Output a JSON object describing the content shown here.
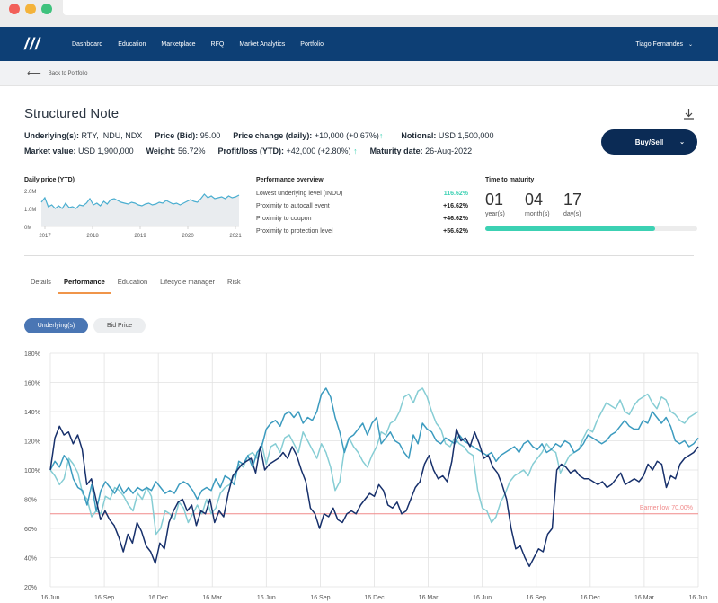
{
  "nav": {
    "logo": "///",
    "items": [
      "Dashboard",
      "Education",
      "Marketplace",
      "RFQ",
      "Market Analytics",
      "Portfolio"
    ],
    "user": "Tiago Fernandes",
    "bg": "#0d3f75"
  },
  "back": {
    "label": "Back to Portfolio"
  },
  "header": {
    "title": "Structured Note",
    "row1": [
      {
        "k": "Underlying(s):",
        "v": "RTY, INDU, NDX"
      },
      {
        "k": "Price (Bid):",
        "v": "95.00"
      },
      {
        "k": "Price change (daily):",
        "v": "+10,000 (+0.67%)",
        "arrow": "↑"
      },
      {
        "k": "Notional:",
        "v": "USD 1,500,000"
      }
    ],
    "row2": [
      {
        "k": "Market value:",
        "v": "USD 1,900,000"
      },
      {
        "k": "Weight:",
        "v": "56.72%"
      },
      {
        "k": "Profit/loss (YTD):",
        "v": "+42,000 (+2.80%)",
        "arrow": "↑"
      },
      {
        "k": "Maturity date:",
        "v": "26-Aug-2022"
      }
    ],
    "buy_sell": "Buy/Sell"
  },
  "daily_price": {
    "title": "Daily price (YTD)",
    "y_ticks": [
      "2.0M",
      "1.0M",
      "0M"
    ],
    "x_ticks": [
      "2017",
      "2018",
      "2019",
      "2020",
      "2021"
    ],
    "values": [
      1.35,
      1.6,
      1.1,
      1.2,
      1.0,
      1.15,
      1.0,
      1.3,
      1.05,
      1.1,
      1.0,
      1.2,
      1.15,
      1.3,
      1.55,
      1.2,
      1.3,
      1.15,
      1.4,
      1.25,
      1.5,
      1.55,
      1.45,
      1.35,
      1.3,
      1.25,
      1.35,
      1.3,
      1.2,
      1.15,
      1.25,
      1.3,
      1.2,
      1.25,
      1.35,
      1.3,
      1.45,
      1.35,
      1.25,
      1.3,
      1.2,
      1.3,
      1.4,
      1.5,
      1.4,
      1.35,
      1.55,
      1.8,
      1.6,
      1.7,
      1.55,
      1.6,
      1.65,
      1.55,
      1.7,
      1.6,
      1.65,
      1.75
    ]
  },
  "performance_overview": {
    "title": "Performance overview",
    "rows": [
      {
        "label": "Lowest underlying level (INDU)",
        "value": "116.62%",
        "highlight": true
      },
      {
        "label": "Proximity to autocall event",
        "value": "+16.62%",
        "highlight": false
      },
      {
        "label": "Proximity to coupon",
        "value": "+46.62%",
        "highlight": false
      },
      {
        "label": "Proximity to protection level",
        "value": "+56.62%",
        "highlight": false
      }
    ]
  },
  "time_to_maturity": {
    "title": "Time to maturity",
    "parts": [
      {
        "num": "01",
        "label": "year(s)"
      },
      {
        "num": "04",
        "label": "month(s)"
      },
      {
        "num": "17",
        "label": "day(s)"
      }
    ],
    "progress": 0.8
  },
  "tabs": [
    "Details",
    "Performance",
    "Education",
    "Lifecycle manager",
    "Risk"
  ],
  "active_tab": "Performance",
  "toggles": {
    "on": "Underlying(s)",
    "off": "Bid Price"
  },
  "chart_data": {
    "type": "line",
    "y_ticks": [
      "180%",
      "160%",
      "140%",
      "120%",
      "100%",
      "80%",
      "60%",
      "40%",
      "20%"
    ],
    "ylim": [
      20,
      180
    ],
    "x_ticks": [
      "16 Jun",
      "16 Sep",
      "16 Dec",
      "16 Mar",
      "16 Jun",
      "16 Sep",
      "16 Dec",
      "16 Mar",
      "16 Jun",
      "16 Sep",
      "16 Dec",
      "16 Mar",
      "16 Jun"
    ],
    "barrier": {
      "label": "Barrier low 70.00%",
      "value": 70,
      "color": "#f08a8a"
    },
    "series": [
      {
        "color": "#17306b",
        "values": [
          100,
          122,
          130,
          124,
          126,
          118,
          124,
          114,
          90,
          94,
          80,
          66,
          72,
          66,
          62,
          54,
          44,
          56,
          50,
          64,
          58,
          48,
          44,
          36,
          50,
          46,
          64,
          72,
          78,
          80,
          72,
          76,
          62,
          72,
          70,
          80,
          64,
          72,
          68,
          84,
          96,
          100,
          104,
          106,
          108,
          98,
          116,
          100,
          104,
          106,
          108,
          112,
          108,
          116,
          110,
          100,
          92,
          74,
          70,
          60,
          70,
          68,
          74,
          66,
          64,
          70,
          72,
          70,
          76,
          80,
          84,
          82,
          90,
          86,
          76,
          74,
          78,
          70,
          72,
          80,
          88,
          92,
          104,
          110,
          100,
          94,
          96,
          92,
          106,
          128,
          120,
          122,
          116,
          126,
          118,
          108,
          110,
          102,
          98,
          90,
          80,
          60,
          46,
          48,
          40,
          34,
          40,
          46,
          44,
          56,
          60,
          100,
          104,
          102,
          98,
          100,
          96,
          94,
          94,
          92,
          90,
          92,
          88,
          90,
          94,
          98,
          90,
          92,
          94,
          92,
          96,
          104,
          100,
          106,
          104,
          88,
          96,
          94,
          104,
          108,
          110,
          112,
          116
        ]
      },
      {
        "color": "#3c9bbf",
        "values": [
          100,
          106,
          102,
          110,
          106,
          94,
          88,
          86,
          76,
          90,
          72,
          86,
          92,
          88,
          84,
          90,
          84,
          88,
          84,
          88,
          86,
          88,
          86,
          92,
          88,
          84,
          86,
          84,
          90,
          92,
          90,
          86,
          80,
          86,
          88,
          86,
          94,
          88,
          96,
          94,
          90,
          106,
          104,
          110,
          102,
          112,
          116,
          128,
          132,
          134,
          130,
          138,
          140,
          136,
          140,
          132,
          136,
          134,
          140,
          152,
          156,
          150,
          136,
          126,
          112,
          122,
          124,
          128,
          132,
          124,
          132,
          136,
          118,
          122,
          126,
          120,
          118,
          112,
          108,
          124,
          118,
          132,
          128,
          126,
          120,
          118,
          122,
          120,
          118,
          124,
          120,
          118,
          116,
          114,
          112,
          110,
          112,
          106,
          110,
          112,
          114,
          116,
          112,
          118,
          120,
          116,
          114,
          118,
          112,
          114,
          118,
          116,
          120,
          118,
          112,
          114,
          118,
          124,
          122,
          120,
          118,
          120,
          124,
          126,
          130,
          134,
          130,
          128,
          128,
          134,
          132,
          140,
          136,
          132,
          136,
          130,
          120,
          118,
          120,
          116,
          118,
          122
        ]
      },
      {
        "color": "#86cdd4",
        "values": [
          100,
          96,
          90,
          94,
          108,
          104,
          98,
          84,
          80,
          68,
          72,
          70,
          82,
          80,
          88,
          86,
          82,
          76,
          72,
          84,
          80,
          88,
          82,
          56,
          60,
          72,
          70,
          66,
          78,
          74,
          64,
          70,
          76,
          70,
          80,
          70,
          74,
          84,
          88,
          90,
          96,
          104,
          102,
          110,
          112,
          108,
          118,
          104,
          116,
          118,
          112,
          122,
          124,
          118,
          112,
          126,
          120,
          114,
          108,
          118,
          112,
          102,
          86,
          92,
          114,
          122,
          116,
          112,
          106,
          102,
          110,
          116,
          126,
          124,
          132,
          134,
          140,
          150,
          152,
          146,
          154,
          156,
          150,
          140,
          132,
          128,
          118,
          116,
          122,
          118,
          116,
          112,
          110,
          86,
          74,
          72,
          64,
          68,
          78,
          84,
          92,
          96,
          98,
          100,
          96,
          104,
          108,
          112,
          118,
          114,
          112,
          98,
          104,
          110,
          112,
          114,
          122,
          128,
          126,
          134,
          140,
          146,
          144,
          142,
          148,
          140,
          138,
          144,
          148,
          150,
          152,
          146,
          142,
          150,
          148,
          140,
          138,
          134,
          132,
          136,
          138,
          140
        ]
      }
    ]
  }
}
